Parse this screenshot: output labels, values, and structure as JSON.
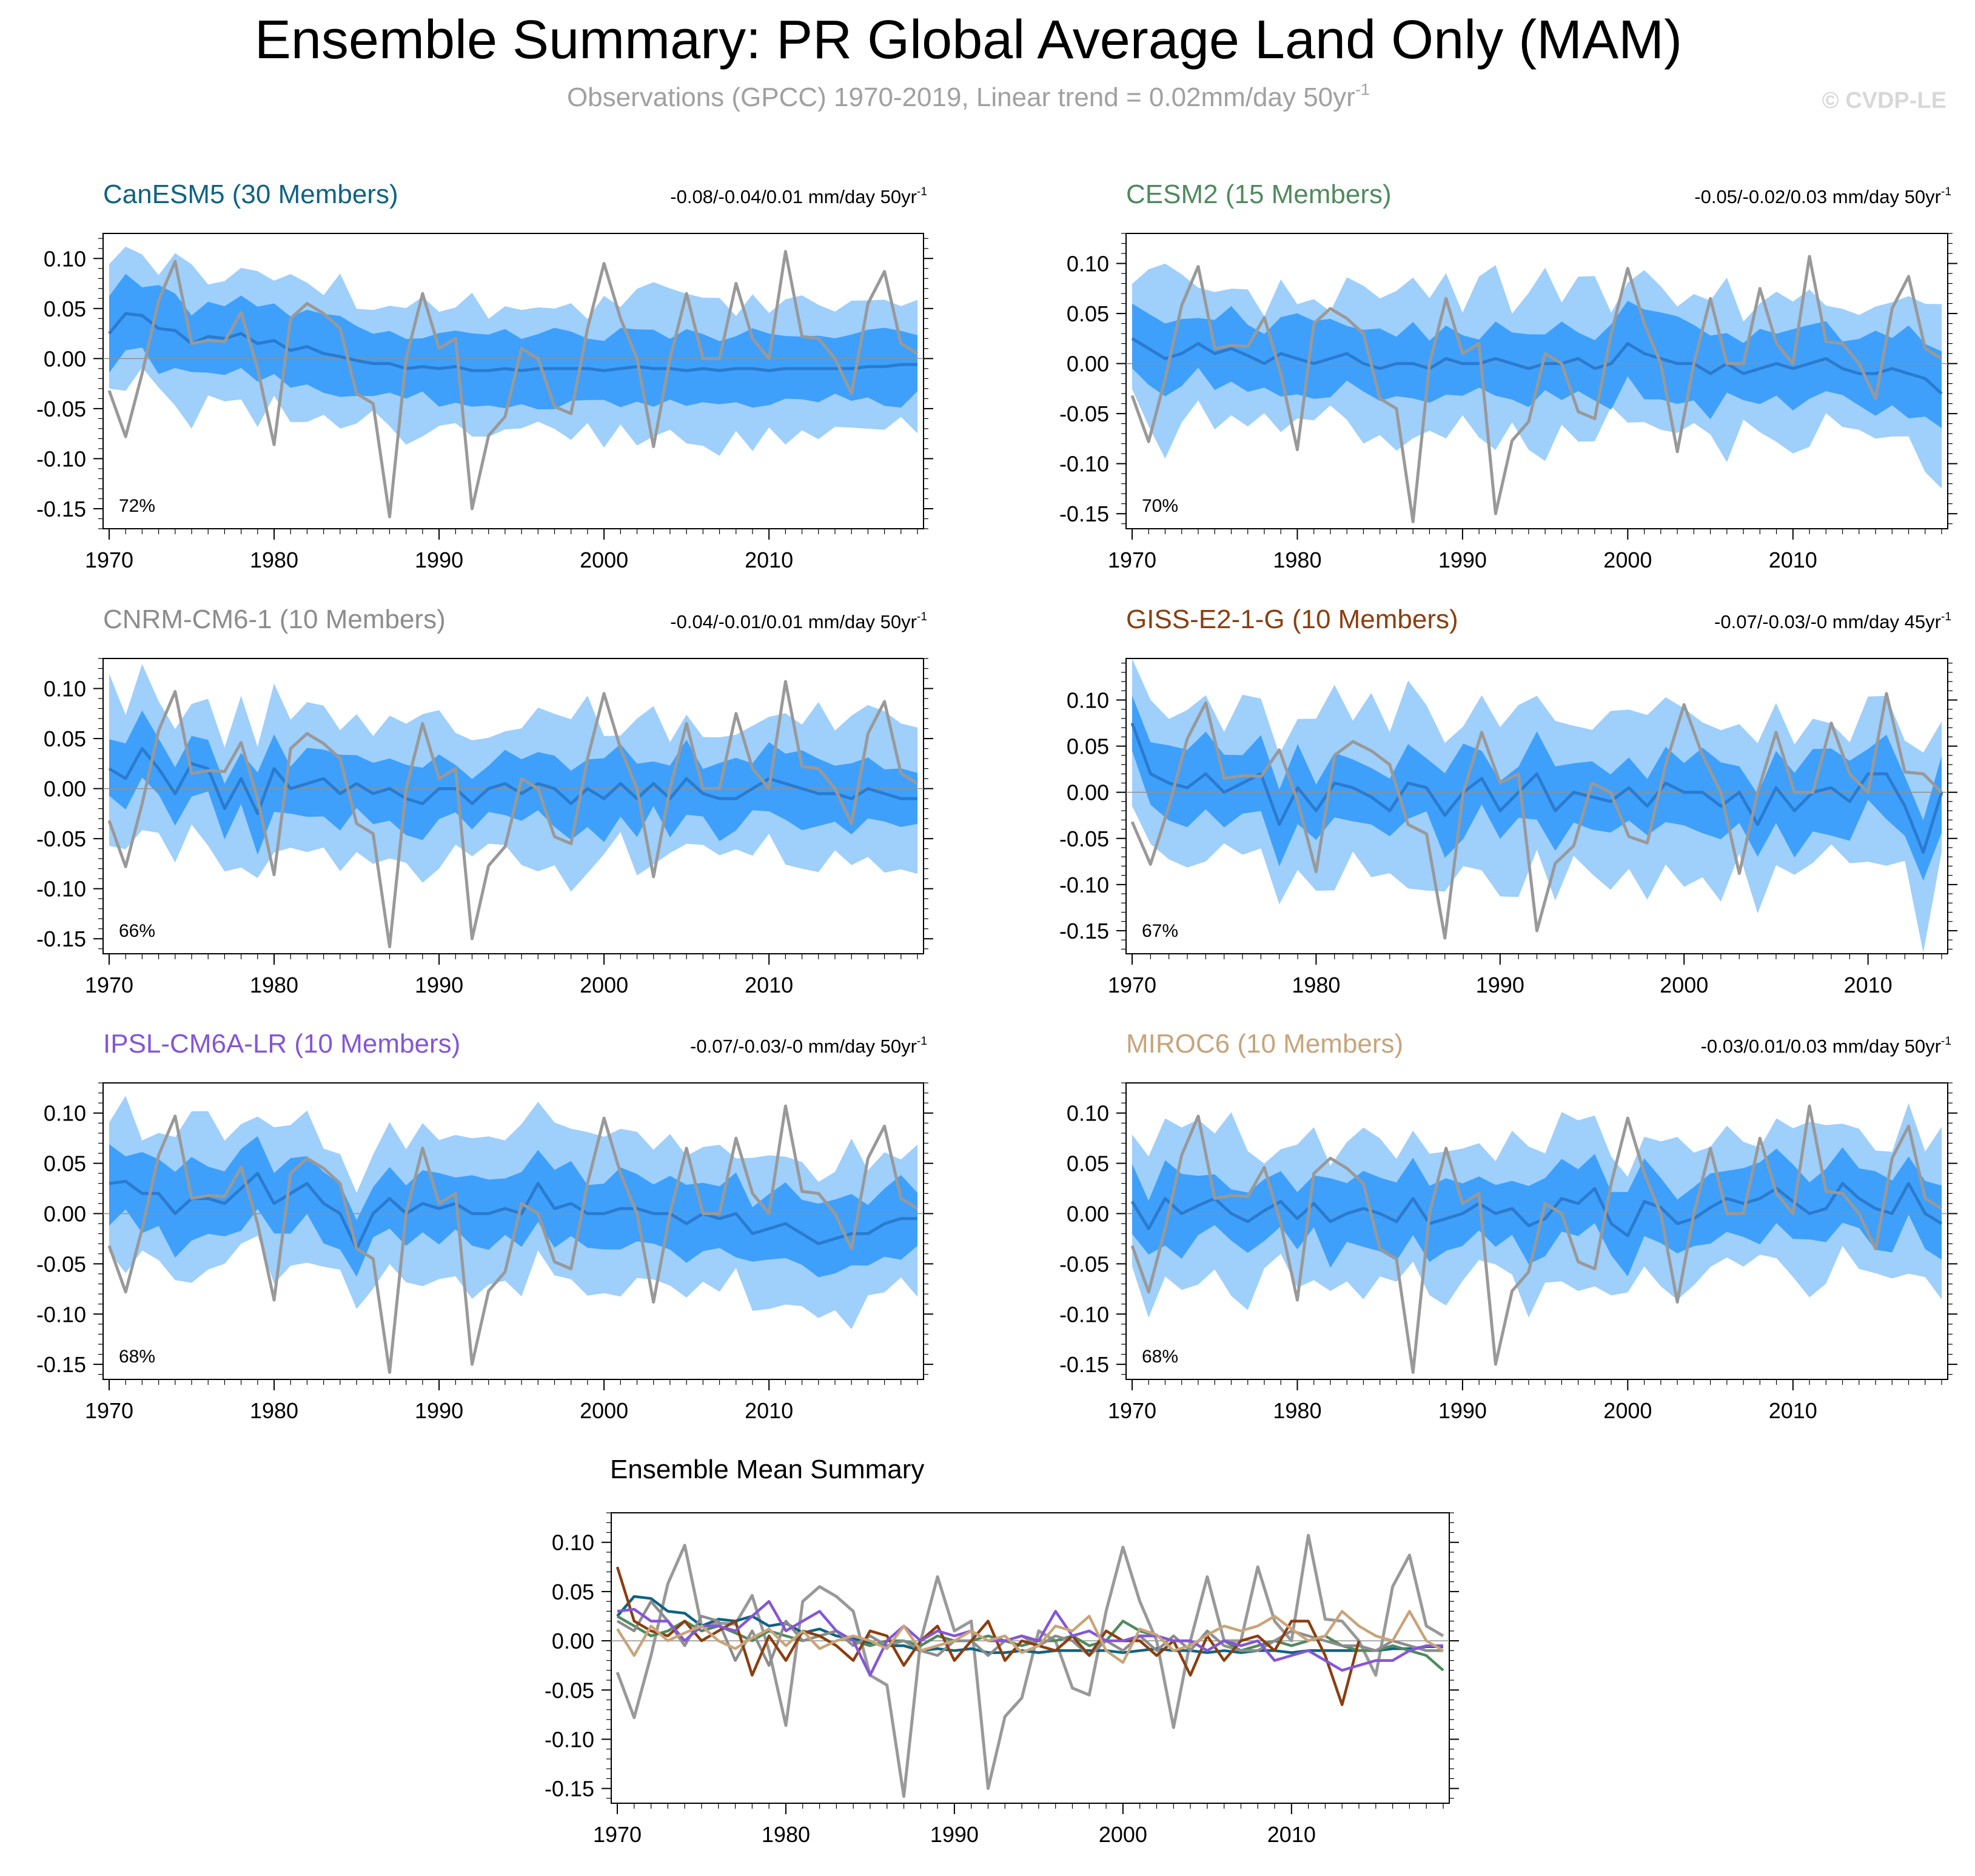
{
  "title": "Ensemble Summary: PR Global Average Land Only (MAM)",
  "subtitle": {
    "prefix": "Observations (GPCC) 1970-2019, Linear trend = 0.02mm/day 50yr",
    "sup": "-1"
  },
  "watermark": "© CVDP-LE",
  "colors": {
    "band_light": "#9fcffb",
    "band_dark": "#3ea0fa",
    "ens_mean": "#2a7bd0",
    "obs": "#999999",
    "zero_line": "#909090",
    "axis": "#000000",
    "title": "#000000",
    "subtitle": "#a0a0a0",
    "watermark": "#d8d8d8"
  },
  "observations": {
    "name": "GPCC",
    "years": [
      1970,
      2019
    ],
    "values": [
      -0.032,
      -0.078,
      -0.015,
      0.058,
      0.097,
      0.015,
      0.018,
      0.017,
      0.046,
      -0.01,
      -0.086,
      0.04,
      0.055,
      0.045,
      0.03,
      -0.035,
      -0.045,
      -0.158,
      0.0,
      0.065,
      0.01,
      0.02,
      -0.15,
      -0.077,
      -0.058,
      0.01,
      0.0,
      -0.048,
      -0.055,
      0.03,
      0.095,
      0.04,
      0.0,
      -0.088,
      0.0,
      0.065,
      0.0,
      0.0,
      0.075,
      0.02,
      0.0,
      0.107,
      0.022,
      0.02,
      0.0,
      -0.035,
      0.055,
      0.087,
      0.015,
      0.005
    ]
  },
  "chart_data": [
    {
      "type": "line",
      "title": "CanESM5 (30 Members)",
      "title_color": "#0f6382",
      "trend_text": "-0.08/-0.04/0.01 mm/day 50yr",
      "trend_sup": "-1",
      "percent": "72%",
      "years": [
        1970,
        2019
      ],
      "xlim": [
        1970,
        2019
      ],
      "ylim": [
        -0.17,
        0.125
      ],
      "yticks": [
        0.1,
        0.05,
        0.0,
        -0.05,
        -0.1,
        -0.15
      ],
      "ytick_labels": [
        "0.10",
        "0.05",
        "0.00",
        "-0.05",
        "-0.10",
        "-0.15"
      ],
      "xticks": [
        1970,
        1980,
        1990,
        2000,
        2010
      ],
      "ens_mean": [
        0.025,
        0.045,
        0.043,
        0.03,
        0.028,
        0.015,
        0.022,
        0.02,
        0.025,
        0.015,
        0.018,
        0.008,
        0.012,
        0.005,
        0.002,
        -0.002,
        -0.005,
        -0.005,
        -0.01,
        -0.008,
        -0.01,
        -0.008,
        -0.012,
        -0.012,
        -0.01,
        -0.012,
        -0.01,
        -0.01,
        -0.01,
        -0.01,
        -0.012,
        -0.01,
        -0.008,
        -0.01,
        -0.01,
        -0.012,
        -0.01,
        -0.012,
        -0.01,
        -0.01,
        -0.012,
        -0.01,
        -0.01,
        -0.01,
        -0.01,
        -0.01,
        -0.008,
        -0.008,
        -0.006,
        -0.006
      ],
      "obs": "observations",
      "amp_inner": 0.034,
      "amp_outer": 0.066,
      "wiggle": 0.012,
      "seed": 1
    },
    {
      "type": "line",
      "title": "CESM2 (15 Members)",
      "title_color": "#4f8a5e",
      "trend_text": "-0.05/-0.02/0.03 mm/day 50yr",
      "trend_sup": "-1",
      "percent": "70%",
      "years": [
        1970,
        2019
      ],
      "xlim": [
        1970,
        2019
      ],
      "ylim": [
        -0.165,
        0.13
      ],
      "yticks": [
        0.1,
        0.05,
        0.0,
        -0.05,
        -0.1,
        -0.15
      ],
      "ytick_labels": [
        "0.10",
        "0.05",
        "0.00",
        "-0.05",
        "-0.10",
        "-0.15"
      ],
      "xticks": [
        1970,
        1980,
        1990,
        2000,
        2010
      ],
      "ens_mean": [
        0.025,
        0.015,
        0.005,
        0.01,
        0.02,
        0.01,
        0.015,
        0.008,
        0.0,
        0.01,
        0.005,
        0.0,
        0.005,
        0.01,
        0.0,
        -0.005,
        0.0,
        0.0,
        -0.005,
        0.005,
        0.0,
        0.0,
        0.005,
        0.0,
        -0.005,
        0.0,
        0.0,
        0.005,
        -0.005,
        0.0,
        0.02,
        0.01,
        0.005,
        0.0,
        0.0,
        -0.01,
        0.0,
        -0.01,
        -0.005,
        0.0,
        -0.005,
        0.0,
        0.005,
        -0.005,
        -0.01,
        -0.01,
        -0.005,
        -0.01,
        -0.015,
        -0.03
      ],
      "obs": "observations",
      "amp_inner": 0.035,
      "amp_outer": 0.07,
      "wiggle": 0.018,
      "seed": 2
    },
    {
      "type": "line",
      "title": "CNRM-CM6-1 (10 Members)",
      "title_color": "#8c8c8c",
      "trend_text": "-0.04/-0.01/0.01 mm/day 50yr",
      "trend_sup": "-1",
      "percent": "66%",
      "years": [
        1970,
        2019
      ],
      "xlim": [
        1970,
        2019
      ],
      "ylim": [
        -0.165,
        0.13
      ],
      "yticks": [
        0.1,
        0.05,
        0.0,
        -0.05,
        -0.1,
        -0.15
      ],
      "ytick_labels": [
        "0.10",
        "0.05",
        "0.00",
        "-0.05",
        "-0.10",
        "-0.15"
      ],
      "xticks": [
        1970,
        1980,
        1990,
        2000,
        2010
      ],
      "ens_mean": [
        0.02,
        0.01,
        0.04,
        0.02,
        -0.005,
        0.025,
        0.02,
        -0.02,
        0.01,
        -0.025,
        0.02,
        0.0,
        0.005,
        0.01,
        -0.005,
        0.005,
        -0.005,
        0.0,
        -0.01,
        -0.015,
        0.0,
        0.0,
        -0.015,
        0.0,
        0.005,
        -0.005,
        0.005,
        0.0,
        -0.015,
        0.0,
        -0.01,
        0.005,
        -0.01,
        0.005,
        -0.01,
        0.01,
        -0.005,
        -0.01,
        -0.01,
        0.0,
        0.01,
        0.005,
        0.0,
        -0.005,
        -0.005,
        -0.01,
        0.0,
        -0.005,
        -0.01,
        -0.01
      ],
      "obs": "observations",
      "amp_inner": 0.032,
      "amp_outer": 0.07,
      "wiggle": 0.014,
      "seed": 3
    },
    {
      "type": "line",
      "title": "GISS-E2-1-G (10 Members)",
      "title_color": "#8b3e0f",
      "trend_text": "-0.07/-0.03/-0 mm/day 45yr",
      "trend_sup": "-1",
      "percent": "67%",
      "years": [
        1970,
        2014
      ],
      "xlim": [
        1970,
        2014
      ],
      "ylim": [
        -0.175,
        0.145
      ],
      "yticks": [
        0.1,
        0.05,
        0.0,
        -0.05,
        -0.1,
        -0.15
      ],
      "ytick_labels": [
        "0.10",
        "0.05",
        "0.00",
        "-0.05",
        "-0.10",
        "-0.15"
      ],
      "xticks": [
        1970,
        1980,
        1990,
        2000,
        2010
      ],
      "ens_mean": [
        0.075,
        0.02,
        0.01,
        0.005,
        0.02,
        0.0,
        0.01,
        0.02,
        -0.035,
        0.005,
        -0.02,
        0.01,
        0.005,
        -0.005,
        -0.02,
        0.01,
        0.005,
        -0.025,
        0.0,
        0.015,
        -0.02,
        0.0,
        0.02,
        -0.02,
        0.0,
        -0.005,
        -0.01,
        0.005,
        -0.015,
        0.01,
        0.0,
        0.0,
        -0.015,
        0.0,
        -0.035,
        0.005,
        -0.02,
        0.0,
        0.005,
        -0.01,
        0.02,
        0.02,
        -0.015,
        -0.065,
        0.0
      ],
      "obs": "observations",
      "amp_inner": 0.038,
      "amp_outer": 0.085,
      "wiggle": 0.02,
      "seed": 4
    },
    {
      "type": "line",
      "title": "IPSL-CM6A-LR (10 Members)",
      "title_color": "#8456d6",
      "trend_text": "-0.07/-0.03/-0 mm/day 50yr",
      "trend_sup": "-1",
      "percent": "68%",
      "years": [
        1970,
        2019
      ],
      "xlim": [
        1970,
        2019
      ],
      "ylim": [
        -0.165,
        0.13
      ],
      "yticks": [
        0.1,
        0.05,
        0.0,
        -0.05,
        -0.1,
        -0.15
      ],
      "ytick_labels": [
        "0.10",
        "0.05",
        "0.00",
        "-0.05",
        "-0.10",
        "-0.15"
      ],
      "xticks": [
        1970,
        1980,
        1990,
        2000,
        2010
      ],
      "ens_mean": [
        0.03,
        0.032,
        0.02,
        0.02,
        0.0,
        0.015,
        0.015,
        0.01,
        0.025,
        0.04,
        0.01,
        0.02,
        0.03,
        0.01,
        0.0,
        -0.035,
        0.0,
        0.015,
        0.0,
        0.01,
        0.005,
        0.01,
        0.0,
        0.0,
        0.005,
        0.0,
        0.03,
        0.005,
        0.01,
        0.0,
        0.0,
        0.005,
        0.005,
        0.0,
        0.0,
        -0.01,
        0.0,
        -0.005,
        0.0,
        -0.02,
        -0.015,
        -0.01,
        -0.02,
        -0.03,
        -0.025,
        -0.02,
        -0.02,
        -0.01,
        -0.005,
        -0.005
      ],
      "obs": "observations",
      "amp_inner": 0.033,
      "amp_outer": 0.07,
      "wiggle": 0.014,
      "seed": 5
    },
    {
      "type": "line",
      "title": "MIROC6 (10 Members)",
      "title_color": "#c8a47a",
      "trend_text": "-0.03/0.01/0.03 mm/day 50yr",
      "trend_sup": "-1",
      "percent": "68%",
      "years": [
        1970,
        2019
      ],
      "xlim": [
        1970,
        2019
      ],
      "ylim": [
        -0.165,
        0.13
      ],
      "yticks": [
        0.1,
        0.05,
        0.0,
        -0.05,
        -0.1,
        -0.15
      ],
      "ytick_labels": [
        "0.10",
        "0.05",
        "0.00",
        "-0.05",
        "-0.10",
        "-0.15"
      ],
      "xticks": [
        1970,
        1980,
        1990,
        2000,
        2010
      ],
      "ens_mean": [
        0.012,
        -0.015,
        0.015,
        0.0,
        0.008,
        0.015,
        0.0,
        -0.008,
        0.003,
        0.012,
        -0.005,
        0.01,
        -0.008,
        0.0,
        0.005,
        0.0,
        -0.008,
        0.015,
        -0.01,
        -0.005,
        0.0,
        0.01,
        0.0,
        0.005,
        -0.012,
        -0.005,
        0.015,
        0.01,
        0.025,
        -0.01,
        -0.022,
        0.012,
        0.006,
        -0.01,
        -0.005,
        0.006,
        0.015,
        0.01,
        0.015,
        0.025,
        0.012,
        0.0,
        0.005,
        0.03,
        0.015,
        0.005,
        0.0,
        0.03,
        0.0,
        -0.01
      ],
      "obs": "observations",
      "amp_inner": 0.034,
      "amp_outer": 0.072,
      "wiggle": 0.016,
      "seed": 6
    },
    {
      "type": "line",
      "title": "Ensemble Mean Summary",
      "title_color": "#000000",
      "xlim": [
        1970,
        2019
      ],
      "ylim": [
        -0.165,
        0.13
      ],
      "yticks": [
        0.1,
        0.05,
        0.0,
        -0.05,
        -0.1,
        -0.15
      ],
      "ytick_labels": [
        "0.10",
        "0.05",
        "0.00",
        "-0.05",
        "-0.10",
        "-0.15"
      ],
      "xticks": [
        1970,
        1980,
        1990,
        2000,
        2010
      ],
      "series_from": [
        "observations",
        "CanESM5 (30 Members)",
        "CESM2 (15 Members)",
        "CNRM-CM6-1 (10 Members)",
        "GISS-E2-1-G (10 Members)",
        "IPSL-CM6A-LR (10 Members)",
        "MIROC6 (10 Members)"
      ]
    }
  ]
}
